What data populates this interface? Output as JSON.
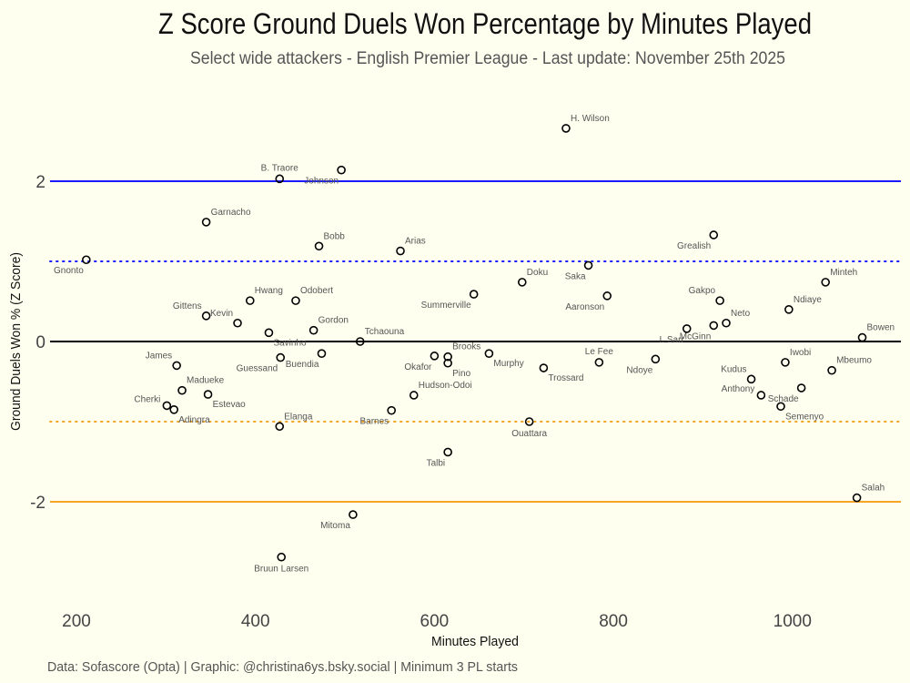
{
  "chart_data": {
    "type": "scatter",
    "title": "Z Score Ground Duels Won Percentage by Minutes Played",
    "subtitle": "Select wide attackers - English Premier League - Last update: November 25th 2025",
    "xlabel": "Minutes Played",
    "ylabel": "Ground Duels Won % (Z Score)",
    "caption": "Data: Sofascore (Opta) | Graphic: @christina6ys.bsky.social | Minimum 3 PL starts",
    "xlim": [
      170,
      1130
    ],
    "ylim": [
      -3.2,
      3.1
    ],
    "x_ticks": [
      "200",
      "400",
      "600",
      "800",
      "1000"
    ],
    "x_tick_values": [
      200,
      400,
      600,
      800,
      1000
    ],
    "y_ticks": [
      "2",
      "0",
      "-2"
    ],
    "y_tick_values": [
      2,
      0,
      -2
    ],
    "grid": false,
    "reference_lines": [
      {
        "y": 2,
        "style": "solid",
        "color": "#1a1aff"
      },
      {
        "y": 1,
        "style": "dotted",
        "color": "#1a1aff"
      },
      {
        "y": 0,
        "style": "solid",
        "color": "#000000"
      },
      {
        "y": -1,
        "style": "dotted",
        "color": "#f5a623"
      },
      {
        "y": -2,
        "style": "solid",
        "color": "#f5a623"
      }
    ],
    "points": [
      {
        "name": "H. Wilson",
        "x": 747,
        "y": 2.66,
        "label_pos": "top-right"
      },
      {
        "name": "B. Traore",
        "x": 427,
        "y": 2.03,
        "label_pos": "top"
      },
      {
        "name": "Johnson",
        "x": 496,
        "y": 2.14,
        "label_pos": "bottom-left"
      },
      {
        "name": "Garnacho",
        "x": 345,
        "y": 1.49,
        "label_pos": "top-right"
      },
      {
        "name": "Bobb",
        "x": 471,
        "y": 1.19,
        "label_pos": "top-right"
      },
      {
        "name": "Arias",
        "x": 562,
        "y": 1.13,
        "label_pos": "top-right"
      },
      {
        "name": "Gnonto",
        "x": 211,
        "y": 1.02,
        "label_pos": "bottom-left"
      },
      {
        "name": "Grealish",
        "x": 912,
        "y": 1.33,
        "label_pos": "bottom-left"
      },
      {
        "name": "Saka",
        "x": 772,
        "y": 0.95,
        "label_pos": "bottom-left"
      },
      {
        "name": "Doku",
        "x": 698,
        "y": 0.74,
        "label_pos": "top-right"
      },
      {
        "name": "Minteh",
        "x": 1037,
        "y": 0.74,
        "label_pos": "top-right"
      },
      {
        "name": "Summerville",
        "x": 644,
        "y": 0.59,
        "label_pos": "bottom-left"
      },
      {
        "name": "Aaronson",
        "x": 793,
        "y": 0.57,
        "label_pos": "bottom-left"
      },
      {
        "name": "Gakpo",
        "x": 919,
        "y": 0.51,
        "label_pos": "top-left"
      },
      {
        "name": "Hwang",
        "x": 394,
        "y": 0.51,
        "label_pos": "top-right"
      },
      {
        "name": "Odobert",
        "x": 445,
        "y": 0.51,
        "label_pos": "top-right"
      },
      {
        "name": "Gittens",
        "x": 345,
        "y": 0.32,
        "label_pos": "top-left"
      },
      {
        "name": "Kevin",
        "x": 380,
        "y": 0.23,
        "label_pos": "top-left"
      },
      {
        "name": "Ndiaye",
        "x": 996,
        "y": 0.4,
        "label_pos": "top-right"
      },
      {
        "name": "Neto",
        "x": 926,
        "y": 0.23,
        "label_pos": "top-right"
      },
      {
        "name": "McGinn",
        "x": 912,
        "y": 0.2,
        "label_pos": "bottom-left"
      },
      {
        "name": "I. Sarr",
        "x": 882,
        "y": 0.16,
        "label_pos": "bottom-left"
      },
      {
        "name": "Savinho",
        "x": 415,
        "y": 0.11,
        "label_pos": "bottom-right"
      },
      {
        "name": "Gordon",
        "x": 465,
        "y": 0.14,
        "label_pos": "top-right"
      },
      {
        "name": "Tchaouna",
        "x": 517,
        "y": 0.0,
        "label_pos": "top-right"
      },
      {
        "name": "Bowen",
        "x": 1078,
        "y": 0.05,
        "label_pos": "top-right"
      },
      {
        "name": "Brooks",
        "x": 615,
        "y": -0.19,
        "label_pos": "top-right"
      },
      {
        "name": "Murphy",
        "x": 661,
        "y": -0.15,
        "label_pos": "bottom-right"
      },
      {
        "name": "Okafor",
        "x": 600,
        "y": -0.18,
        "label_pos": "bottom-left"
      },
      {
        "name": "Pino",
        "x": 615,
        "y": -0.27,
        "label_pos": "bottom-right"
      },
      {
        "name": "Buendia",
        "x": 474,
        "y": -0.15,
        "label_pos": "bottom-left"
      },
      {
        "name": "Guessand",
        "x": 428,
        "y": -0.2,
        "label_pos": "bottom-left"
      },
      {
        "name": "James",
        "x": 312,
        "y": -0.3,
        "label_pos": "top-left"
      },
      {
        "name": "Iwobi",
        "x": 992,
        "y": -0.26,
        "label_pos": "top-right"
      },
      {
        "name": "Trossard",
        "x": 722,
        "y": -0.33,
        "label_pos": "bottom-right"
      },
      {
        "name": "Le Fee",
        "x": 784,
        "y": -0.26,
        "label_pos": "top"
      },
      {
        "name": "Ndoye",
        "x": 847,
        "y": -0.22,
        "label_pos": "bottom-left"
      },
      {
        "name": "Mbeumo",
        "x": 1044,
        "y": -0.36,
        "label_pos": "top-right"
      },
      {
        "name": "Kudus",
        "x": 954,
        "y": -0.47,
        "label_pos": "top-left"
      },
      {
        "name": "Madueke",
        "x": 318,
        "y": -0.61,
        "label_pos": "top-right"
      },
      {
        "name": "Estevao",
        "x": 347,
        "y": -0.66,
        "label_pos": "bottom-right"
      },
      {
        "name": "Anthony",
        "x": 965,
        "y": -0.67,
        "label_pos": "left"
      },
      {
        "name": "Schade",
        "x": 1010,
        "y": -0.58,
        "label_pos": "bottom-left"
      },
      {
        "name": "Hudson-Odoi",
        "x": 577,
        "y": -0.67,
        "label_pos": "top-right"
      },
      {
        "name": "Semenyo",
        "x": 987,
        "y": -0.81,
        "label_pos": "bottom-right"
      },
      {
        "name": "Cherki",
        "x": 301,
        "y": -0.8,
        "label_pos": "left"
      },
      {
        "name": "Adingra",
        "x": 309,
        "y": -0.85,
        "label_pos": "bottom-right"
      },
      {
        "name": "Barnes",
        "x": 552,
        "y": -0.86,
        "label_pos": "bottom-left"
      },
      {
        "name": "Ouattara",
        "x": 706,
        "y": -1.0,
        "label_pos": "bottom"
      },
      {
        "name": "Elanga",
        "x": 427,
        "y": -1.06,
        "label_pos": "top-right"
      },
      {
        "name": "Talbi",
        "x": 615,
        "y": -1.38,
        "label_pos": "bottom-left"
      },
      {
        "name": "Salah",
        "x": 1072,
        "y": -1.95,
        "label_pos": "top-right"
      },
      {
        "name": "Mitoma",
        "x": 509,
        "y": -2.16,
        "label_pos": "bottom-left"
      },
      {
        "name": "Bruun Larsen",
        "x": 429,
        "y": -2.69,
        "label_pos": "bottom"
      }
    ]
  }
}
